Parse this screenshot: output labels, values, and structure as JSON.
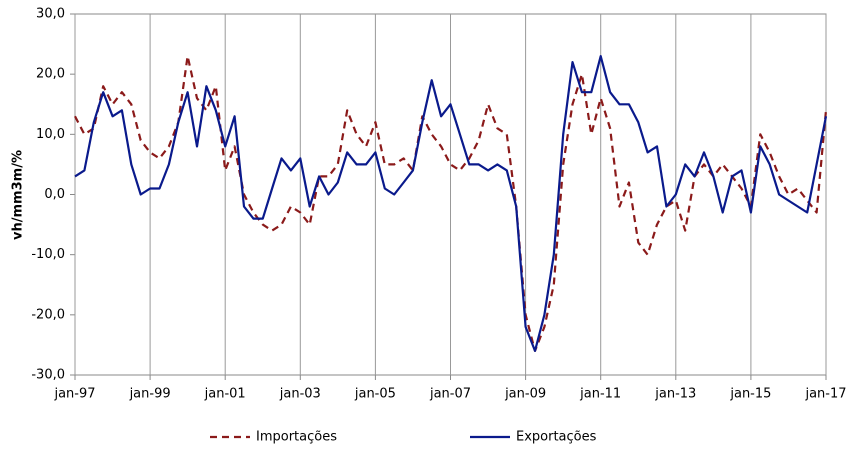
{
  "chart_data": {
    "type": "line",
    "y_label": "vh/mm3m/%",
    "x": [
      1997,
      1997.25,
      1997.5,
      1997.75,
      1998,
      1998.25,
      1998.5,
      1998.75,
      1999,
      1999.25,
      1999.5,
      1999.75,
      2000,
      2000.25,
      2000.5,
      2000.75,
      2001,
      2001.25,
      2001.5,
      2001.75,
      2002,
      2002.25,
      2002.5,
      2002.75,
      2003,
      2003.25,
      2003.5,
      2003.75,
      2004,
      2004.25,
      2004.5,
      2004.75,
      2005,
      2005.25,
      2005.5,
      2005.75,
      2006,
      2006.25,
      2006.5,
      2006.75,
      2007,
      2007.25,
      2007.5,
      2007.75,
      2008,
      2008.25,
      2008.5,
      2008.75,
      2009,
      2009.25,
      2009.5,
      2009.75,
      2010,
      2010.25,
      2010.5,
      2010.75,
      2011,
      2011.25,
      2011.5,
      2011.75,
      2012,
      2012.25,
      2012.5,
      2012.75,
      2013,
      2013.25,
      2013.5,
      2013.75,
      2014,
      2014.25,
      2014.5,
      2014.75,
      2015,
      2015.25,
      2015.5,
      2015.75,
      2016,
      2016.25,
      2016.5,
      2016.75,
      2017
    ],
    "series": [
      {
        "name": "Importações",
        "color": "#8b1a1a",
        "dash": true,
        "values": [
          13,
          10,
          11,
          18,
          15,
          17,
          15,
          9,
          7,
          6,
          8,
          12,
          23,
          16,
          14,
          18,
          4,
          8,
          0,
          -3,
          -5,
          -6,
          -5,
          -2,
          -3,
          -5,
          3,
          3,
          5,
          14,
          10,
          8,
          12,
          5,
          5,
          6,
          4,
          13,
          10,
          8,
          5,
          4,
          6,
          9,
          15,
          11,
          10,
          -2,
          -20,
          -26,
          -22,
          -15,
          5,
          15,
          20,
          10,
          16,
          11,
          -2,
          2,
          -8,
          -10,
          -5,
          -2,
          -1,
          -6,
          3,
          5,
          3,
          5,
          3,
          1,
          -2,
          10,
          7,
          3,
          0,
          1,
          -1,
          -3,
          14
        ]
      },
      {
        "name": "Exportações",
        "color": "#0a1a8c",
        "dash": false,
        "values": [
          3,
          4,
          12,
          17,
          13,
          14,
          5,
          0,
          1,
          1,
          5,
          12,
          17,
          8,
          18,
          14,
          8,
          13,
          -2,
          -4,
          -4,
          1,
          6,
          4,
          6,
          -2,
          3,
          0,
          2,
          7,
          5,
          5,
          7,
          1,
          0,
          2,
          4,
          12,
          19,
          13,
          15,
          10,
          5,
          5,
          4,
          5,
          4,
          -2,
          -22,
          -26,
          -20,
          -10,
          10,
          22,
          17,
          17,
          23,
          17,
          15,
          15,
          12,
          7,
          8,
          -2,
          0,
          5,
          3,
          7,
          3,
          -3,
          3,
          4,
          -3,
          8,
          5,
          0,
          -1,
          -2,
          -3,
          5,
          13
        ]
      }
    ],
    "xlim": [
      1997,
      2017
    ],
    "xticks": [
      {
        "value": 1997,
        "label": "jan-97"
      },
      {
        "value": 1999,
        "label": "jan-99"
      },
      {
        "value": 2001,
        "label": "jan-01"
      },
      {
        "value": 2003,
        "label": "jan-03"
      },
      {
        "value": 2005,
        "label": "jan-05"
      },
      {
        "value": 2007,
        "label": "jan-07"
      },
      {
        "value": 2009,
        "label": "jan-09"
      },
      {
        "value": 2011,
        "label": "jan-11"
      },
      {
        "value": 2013,
        "label": "jan-13"
      },
      {
        "value": 2015,
        "label": "jan-15"
      },
      {
        "value": 2017,
        "label": "jan-17"
      }
    ],
    "ylim": [
      -30,
      30
    ],
    "yticks": [
      {
        "value": -30,
        "label": "-30,0"
      },
      {
        "value": -20,
        "label": "-20,0"
      },
      {
        "value": -10,
        "label": "-10,0"
      },
      {
        "value": 0,
        "label": "0,0"
      },
      {
        "value": 10,
        "label": "10,0"
      },
      {
        "value": 20,
        "label": "20,0"
      },
      {
        "value": 30,
        "label": "30,0"
      }
    ],
    "grid": "x"
  }
}
